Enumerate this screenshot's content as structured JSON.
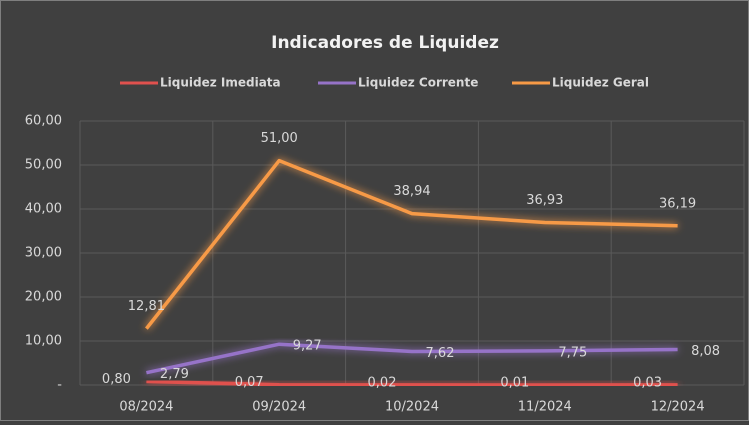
{
  "chart_data": {
    "type": "line",
    "title": "Indicadores de Liquidez",
    "categories": [
      "08/2024",
      "09/2024",
      "10/2024",
      "11/2024",
      "12/2024"
    ],
    "series": [
      {
        "name": "Liquidez Imediata",
        "color": "#e0514e",
        "values": [
          0.8,
          0.07,
          0.02,
          0.01,
          0.03
        ],
        "value_labels": [
          "0,80",
          "0,07",
          "0,02",
          "0,01",
          "0,03"
        ]
      },
      {
        "name": "Liquidez Corrente",
        "color": "#9673c8",
        "values": [
          2.79,
          9.27,
          7.62,
          7.75,
          8.08
        ],
        "value_labels": [
          "2,79",
          "9,27",
          "7,62",
          "7,75",
          "8,08"
        ]
      },
      {
        "name": "Liquidez Geral",
        "color": "#f79a46",
        "values": [
          12.81,
          51.0,
          38.94,
          36.93,
          36.19
        ],
        "value_labels": [
          "12,81",
          "51,00",
          "38,94",
          "36,93",
          "36,19"
        ]
      }
    ],
    "ylim": [
      0,
      60
    ],
    "yticks": [
      {
        "value": 0,
        "label": "-"
      },
      {
        "value": 10,
        "label": "10,00"
      },
      {
        "value": 20,
        "label": "20,00"
      },
      {
        "value": 30,
        "label": "30,00"
      },
      {
        "value": 40,
        "label": "40,00"
      },
      {
        "value": 50,
        "label": "50,00"
      },
      {
        "value": 60,
        "label": "60,00"
      }
    ],
    "grid": true
  }
}
